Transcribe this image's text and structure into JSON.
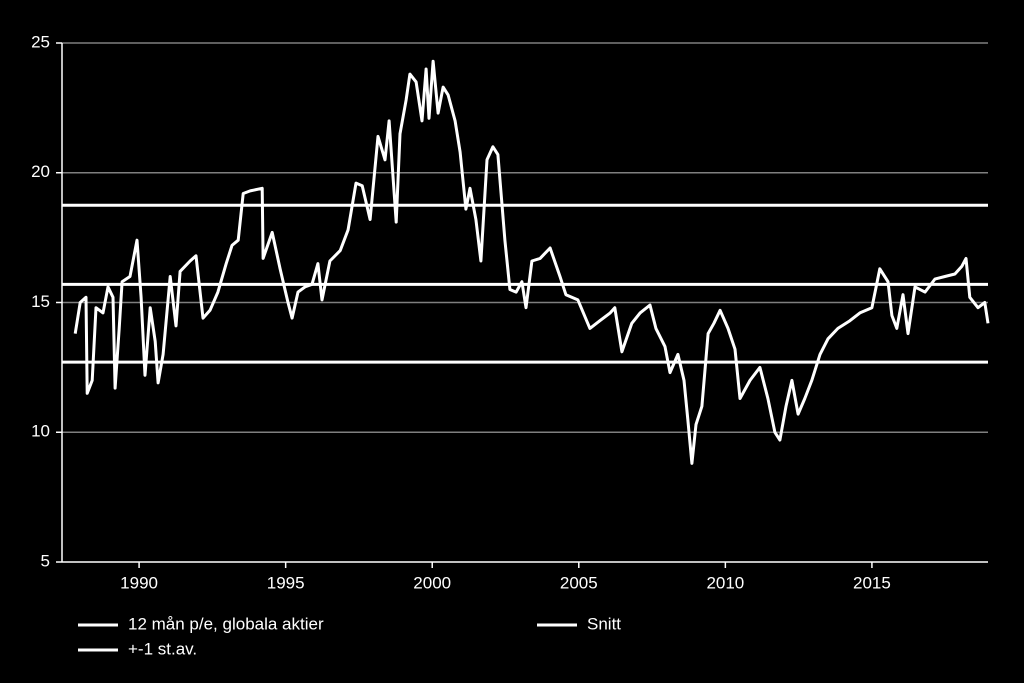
{
  "chart_data": {
    "type": "line",
    "series": [
      {
        "name": "12 mån p/e, globala aktier",
        "color": "#ffffff",
        "x": [
          1987.82,
          1987.99,
          1988.19,
          1988.23,
          1988.4,
          1988.53,
          1988.77,
          1988.94,
          1989.11,
          1989.18,
          1989.32,
          1989.42,
          1989.69,
          1989.93,
          1990.07,
          1990.2,
          1990.38,
          1990.55,
          1990.65,
          1990.82,
          1991.06,
          1991.26,
          1991.4,
          1991.74,
          1991.94,
          1992.18,
          1992.42,
          1992.69,
          1992.97,
          1993.17,
          1993.38,
          1993.55,
          1993.79,
          1994.2,
          1994.23,
          1994.54,
          1994.81,
          1995.08,
          1995.22,
          1995.42,
          1995.66,
          1995.9,
          1996.1,
          1996.24,
          1996.51,
          1996.86,
          1997.13,
          1997.4,
          1997.61,
          1997.88,
          1998.15,
          1998.39,
          1998.53,
          1998.77,
          1998.9,
          1999.11,
          1999.24,
          1999.45,
          1999.65,
          1999.79,
          1999.89,
          2000.03,
          2000.2,
          2000.37,
          2000.54,
          2000.78,
          2000.95,
          2001.15,
          2001.29,
          2001.49,
          2001.66,
          2001.87,
          2002.07,
          2002.24,
          2002.48,
          2002.65,
          2002.86,
          2003.06,
          2003.2,
          2003.4,
          2003.68,
          2004.02,
          2004.36,
          2004.56,
          2004.97,
          2005.38,
          2005.72,
          2006.07,
          2006.23,
          2006.47,
          2006.81,
          2007.09,
          2007.43,
          2007.63,
          2007.94,
          2008.11,
          2008.38,
          2008.59,
          2008.72,
          2008.86,
          2009.0,
          2009.2,
          2009.41,
          2009.61,
          2009.82,
          2010.09,
          2010.33,
          2010.5,
          2010.84,
          2011.18,
          2011.45,
          2011.69,
          2011.86,
          2012.07,
          2012.27,
          2012.48,
          2012.71,
          2012.95,
          2013.23,
          2013.5,
          2013.84,
          2014.25,
          2014.59,
          2015.0,
          2015.27,
          2015.55,
          2015.68,
          2015.85,
          2016.06,
          2016.23,
          2016.47,
          2016.81,
          2017.15,
          2017.49,
          2017.83,
          2018.07,
          2018.21,
          2018.34,
          2018.62,
          2018.85,
          2018.96
        ],
        "values": [
          13.8,
          15.0,
          15.2,
          11.5,
          12.0,
          14.8,
          14.6,
          15.6,
          15.2,
          11.7,
          14.0,
          15.8,
          16.0,
          17.4,
          15.2,
          12.2,
          14.8,
          13.5,
          11.9,
          13.0,
          16.0,
          14.1,
          16.2,
          16.6,
          16.8,
          14.4,
          14.7,
          15.4,
          16.5,
          17.2,
          17.4,
          19.2,
          19.3,
          19.4,
          16.7,
          17.7,
          16.3,
          15.0,
          14.4,
          15.4,
          15.6,
          15.7,
          16.5,
          15.1,
          16.6,
          17.0,
          17.8,
          19.6,
          19.5,
          18.2,
          21.4,
          20.5,
          22.0,
          18.1,
          21.5,
          22.8,
          23.8,
          23.5,
          22.0,
          24.0,
          22.1,
          24.3,
          22.3,
          23.3,
          23.0,
          22.0,
          20.8,
          18.6,
          19.4,
          18.2,
          16.6,
          20.5,
          21.0,
          20.7,
          17.4,
          15.5,
          15.4,
          15.8,
          14.8,
          16.6,
          16.7,
          17.1,
          16.0,
          15.3,
          15.1,
          14.0,
          14.3,
          14.6,
          14.8,
          13.1,
          14.2,
          14.6,
          14.9,
          14.0,
          13.3,
          12.3,
          13.0,
          12.0,
          10.5,
          8.8,
          10.3,
          11.0,
          13.8,
          14.2,
          14.7,
          14.0,
          13.2,
          11.3,
          12.0,
          12.5,
          11.3,
          10.0,
          9.7,
          11.0,
          12.0,
          10.7,
          11.3,
          12.0,
          13.0,
          13.6,
          14.0,
          14.3,
          14.6,
          14.8,
          16.3,
          15.8,
          14.5,
          14.0,
          15.3,
          13.8,
          15.6,
          15.4,
          15.9,
          16.0,
          16.1,
          16.4,
          16.7,
          15.2,
          14.8,
          15.0,
          14.2
        ]
      }
    ],
    "mean": {
      "name": "Snitt",
      "value": 15.7,
      "color": "#ffffff"
    },
    "band": {
      "name": "+-1 st.av.",
      "values": [
        18.75,
        12.7
      ],
      "color": "#ffffff"
    },
    "xlim": [
      1987.37,
      2018.96
    ],
    "xticks": [
      1990,
      1995,
      2000,
      2005,
      2010,
      2015
    ],
    "ylim": [
      5,
      25
    ],
    "yticks": [
      5,
      10,
      15,
      20,
      25
    ],
    "grid": true
  }
}
